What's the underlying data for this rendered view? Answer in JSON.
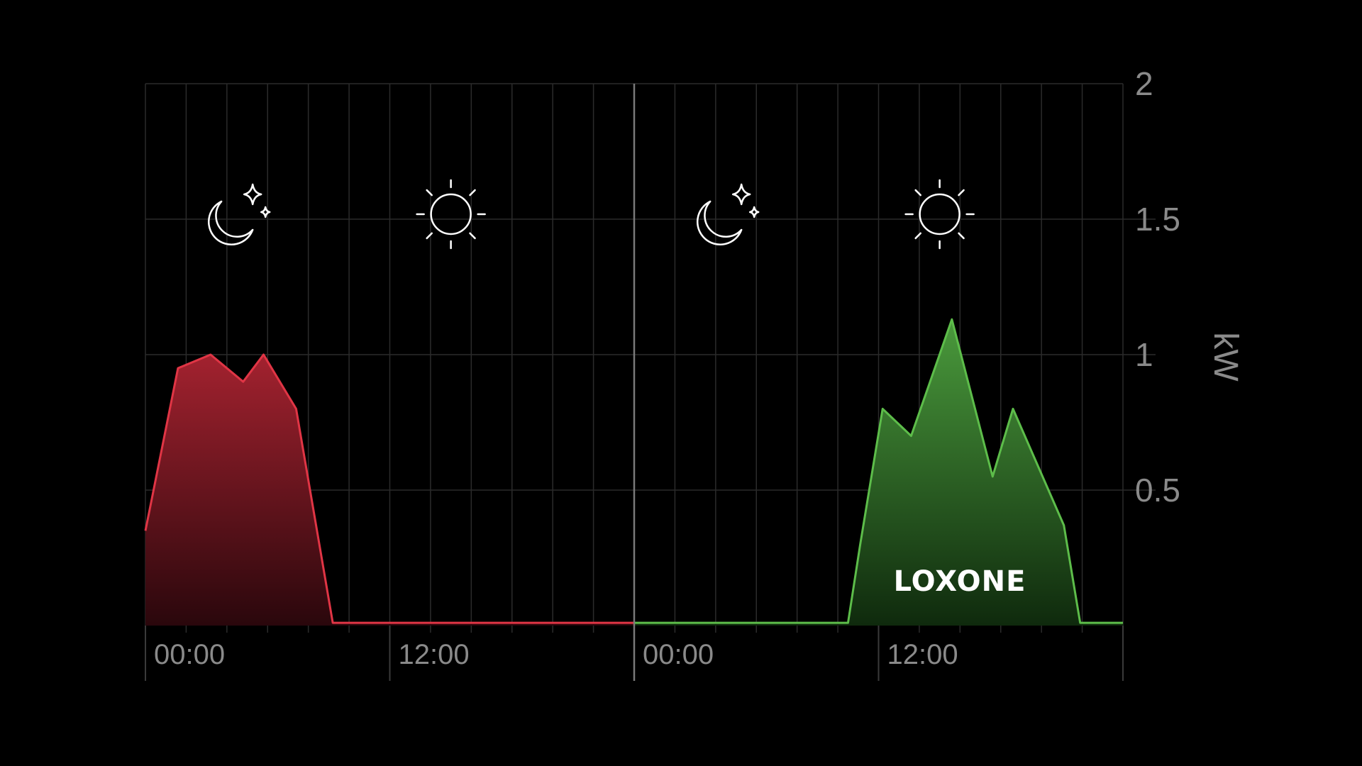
{
  "chart_data": {
    "type": "area",
    "x_unit": "hours",
    "xlim": [
      0,
      48
    ],
    "ylim": [
      0,
      2
    ],
    "y_ticks": [
      {
        "value": 2,
        "label": "2"
      },
      {
        "value": 1.5,
        "label": "1.5"
      },
      {
        "value": 1,
        "label": "1"
      },
      {
        "value": 0.5,
        "label": "0.5"
      }
    ],
    "x_ticks": [
      {
        "value": 0,
        "label": "00:00"
      },
      {
        "value": 12,
        "label": "12:00"
      },
      {
        "value": 24,
        "label": "00:00"
      },
      {
        "value": 36,
        "label": "12:00"
      }
    ],
    "ylabel": "kW",
    "grid": true,
    "divider_x": 24,
    "icons": [
      {
        "name": "moon-stars-icon",
        "x": 4.5
      },
      {
        "name": "sun-icon",
        "x": 15
      },
      {
        "name": "moon-stars-icon",
        "x": 28.5
      },
      {
        "name": "sun-icon",
        "x": 39
      }
    ],
    "series": [
      {
        "color": "#e03545",
        "x": [
          0,
          1.6,
          3.2,
          4.8,
          5.8,
          7.4,
          9.2,
          24
        ],
        "values": [
          0.35,
          0.95,
          1.0,
          0.9,
          1.0,
          0.8,
          0.01,
          0.01
        ]
      },
      {
        "color": "#5dbd4a",
        "x": [
          24,
          34.5,
          35.1,
          36.2,
          37.6,
          39.6,
          41.6,
          42.6,
          45.1,
          45.9,
          48
        ],
        "values": [
          0.01,
          0.01,
          0.3,
          0.8,
          0.7,
          1.13,
          0.55,
          0.8,
          0.37,
          0.01,
          0.01
        ]
      }
    ]
  },
  "watermark": "LOXONE"
}
